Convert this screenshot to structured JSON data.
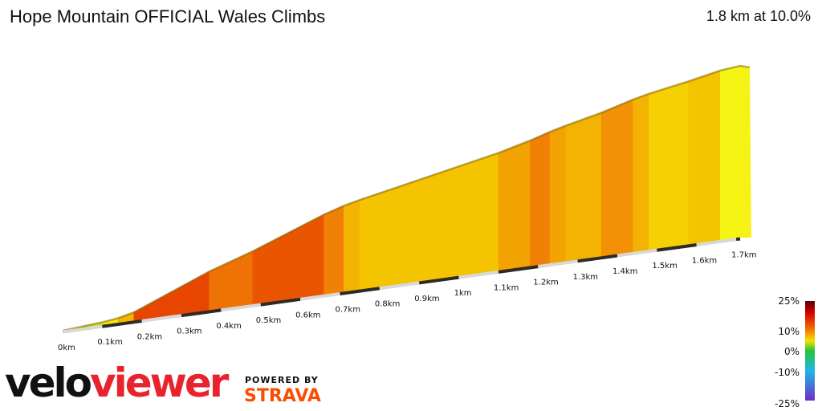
{
  "header": {
    "title": "Hope Mountain OFFICIAL Wales Climbs",
    "summary": "1.8 km at 10.0%"
  },
  "branding": {
    "logo_velo": "velo",
    "logo_viewer": "viewer",
    "powered_by": "POWERED BY",
    "strava": "STRAVA"
  },
  "colors": {
    "brand_red": "#e8232e",
    "strava_orange": "#fc4c02"
  },
  "chart_data": {
    "type": "area",
    "title": "Hope Mountain OFFICIAL Wales Climbs",
    "subtitle": "1.8 km at 10.0%",
    "xlabel": "",
    "ylabel": "",
    "xlim": [
      0,
      1.8
    ],
    "x_ticks": [
      {
        "value": 0.0,
        "label": "0km"
      },
      {
        "value": 0.1,
        "label": "0.1km"
      },
      {
        "value": 0.2,
        "label": "0.2km"
      },
      {
        "value": 0.3,
        "label": "0.3km"
      },
      {
        "value": 0.4,
        "label": "0.4km"
      },
      {
        "value": 0.5,
        "label": "0.5km"
      },
      {
        "value": 0.6,
        "label": "0.6km"
      },
      {
        "value": 0.7,
        "label": "0.7km"
      },
      {
        "value": 0.8,
        "label": "0.8km"
      },
      {
        "value": 0.9,
        "label": "0.9km"
      },
      {
        "value": 1.0,
        "label": "1km"
      },
      {
        "value": 1.1,
        "label": "1.1km"
      },
      {
        "value": 1.2,
        "label": "1.2km"
      },
      {
        "value": 1.3,
        "label": "1.3km"
      },
      {
        "value": 1.4,
        "label": "1.4km"
      },
      {
        "value": 1.5,
        "label": "1.5km"
      },
      {
        "value": 1.6,
        "label": "1.6km"
      },
      {
        "value": 1.7,
        "label": "1.7km"
      }
    ],
    "segments": [
      {
        "from": 0.0,
        "to": 0.1,
        "gradient": 3
      },
      {
        "from": 0.1,
        "to": 0.14,
        "gradient": 5
      },
      {
        "from": 0.14,
        "to": 0.18,
        "gradient": 9
      },
      {
        "from": 0.18,
        "to": 0.37,
        "gradient": 16
      },
      {
        "from": 0.37,
        "to": 0.48,
        "gradient": 13
      },
      {
        "from": 0.48,
        "to": 0.66,
        "gradient": 15
      },
      {
        "from": 0.66,
        "to": 0.71,
        "gradient": 12
      },
      {
        "from": 0.71,
        "to": 0.75,
        "gradient": 9
      },
      {
        "from": 0.75,
        "to": 0.92,
        "gradient": 8
      },
      {
        "from": 0.92,
        "to": 1.1,
        "gradient": 8
      },
      {
        "from": 1.1,
        "to": 1.18,
        "gradient": 10
      },
      {
        "from": 1.18,
        "to": 1.23,
        "gradient": 12
      },
      {
        "from": 1.23,
        "to": 1.27,
        "gradient": 10
      },
      {
        "from": 1.27,
        "to": 1.36,
        "gradient": 9
      },
      {
        "from": 1.36,
        "to": 1.44,
        "gradient": 11
      },
      {
        "from": 1.44,
        "to": 1.48,
        "gradient": 9
      },
      {
        "from": 1.48,
        "to": 1.58,
        "gradient": 7
      },
      {
        "from": 1.58,
        "to": 1.66,
        "gradient": 8
      },
      {
        "from": 1.66,
        "to": 1.71,
        "gradient": 4
      }
    ],
    "gradient_scale": {
      "labels": [
        "25%",
        "10%",
        "0%",
        "-10%",
        "-25%"
      ],
      "stops": [
        {
          "value": 25,
          "color": "#5a0000"
        },
        {
          "value": 18,
          "color": "#d80000"
        },
        {
          "value": 10,
          "color": "#f07000"
        },
        {
          "value": 5,
          "color": "#f7e000"
        },
        {
          "value": 0,
          "color": "#27c23a"
        },
        {
          "value": -10,
          "color": "#1fb7e6"
        },
        {
          "value": -25,
          "color": "#6b2fc7"
        }
      ]
    }
  }
}
